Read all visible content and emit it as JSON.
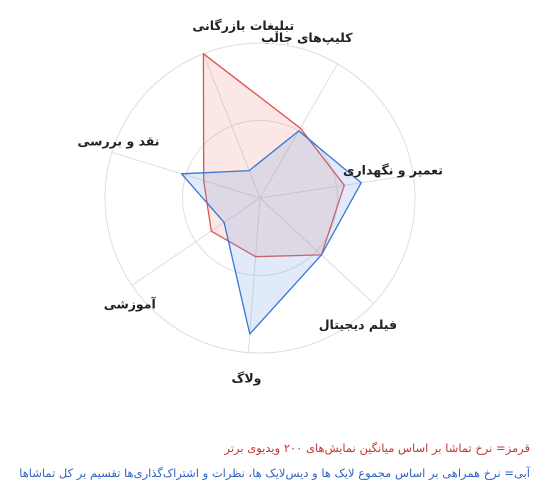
{
  "chart_data": {
    "type": "radar",
    "axes": [
      "کلیپ‌های جالب",
      "تعمیر و نگهداری",
      "فیلم دیجیتال",
      "ولاگ",
      "آموزشی",
      "نقد و بررسی",
      "تبلیغات بازرگانی"
    ],
    "rmax": 100,
    "grid_levels": 2,
    "series": [
      {
        "name": "قرمز",
        "color": "#e0524f",
        "fill": "rgba(233,120,115,0.18)",
        "values": [
          52,
          55,
          54,
          38,
          38,
          38,
          100
        ]
      },
      {
        "name": "آبی",
        "color": "#3677d9",
        "fill": "rgba(120,160,225,0.22)",
        "values": [
          50,
          66,
          54,
          88,
          28,
          53,
          19
        ]
      }
    ],
    "notes": {
      "red": "قرمز= نرخ تماشا بر اساس میانگین نمایش‌های ۲۰۰ ویدیوی برتر",
      "blue": "آبی= نرخ همراهی بر اساس مجموع لایک ها و دیس‌لایک ها، نظرات و اشتراک‌گذاری‌ها تقسیم بر کل تماشاها"
    }
  }
}
